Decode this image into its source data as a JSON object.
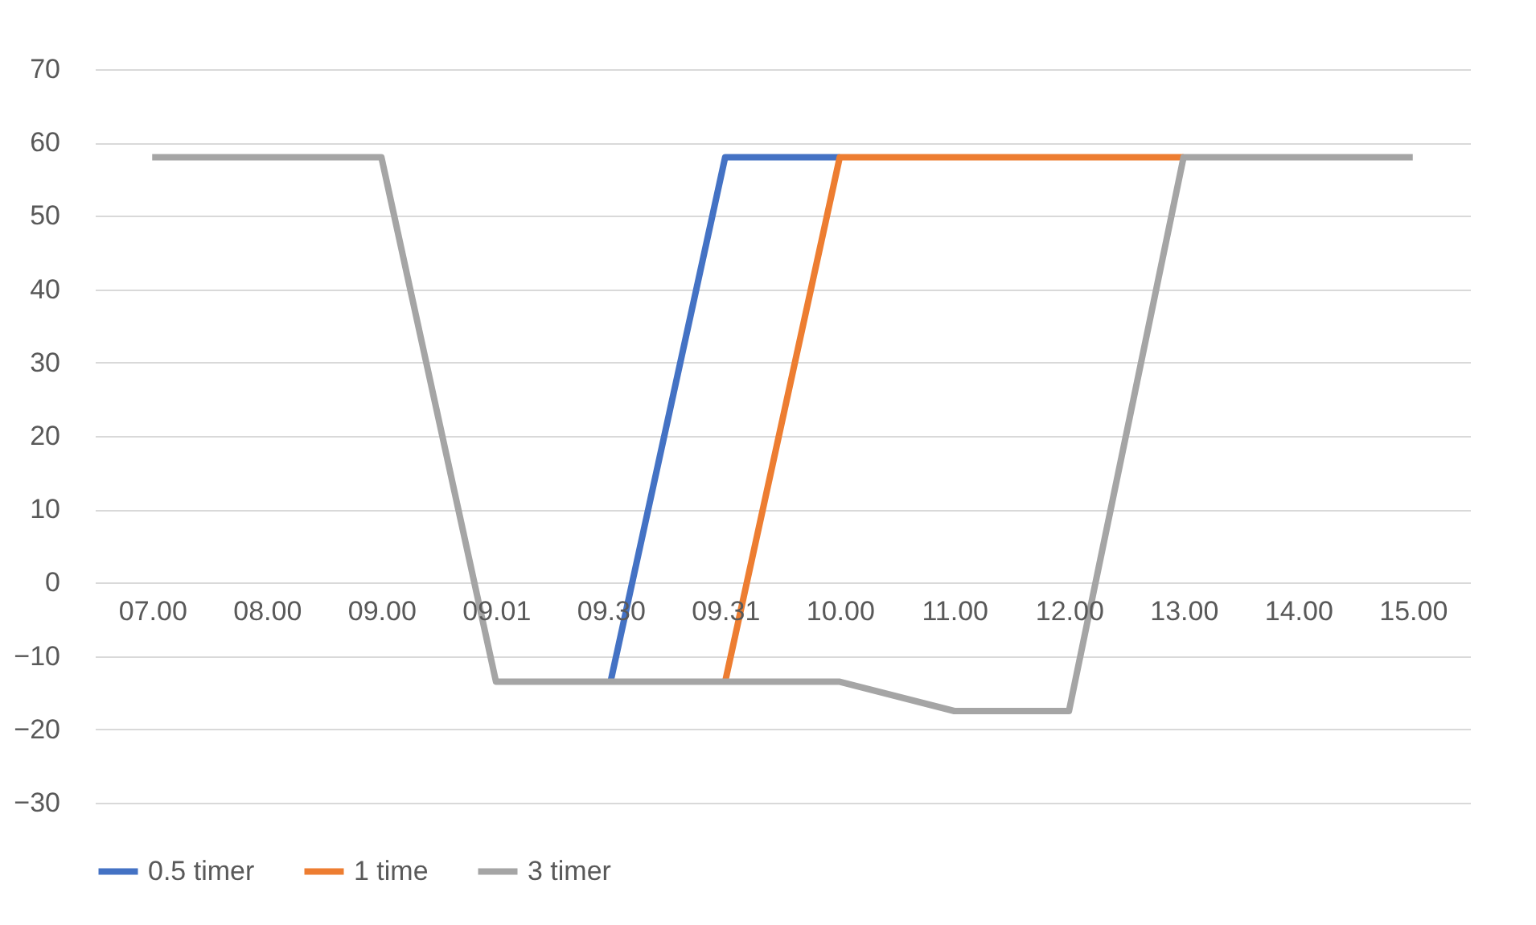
{
  "chart_data": {
    "type": "line",
    "categories": [
      "07.00",
      "08.00",
      "09.00",
      "09.01",
      "09.30",
      "09.31",
      "10.00",
      "11.00",
      "12.00",
      "13.00",
      "14.00",
      "15.00"
    ],
    "series": [
      {
        "name": "0.5 timer",
        "color": "#4472c4",
        "values": [
          null,
          null,
          null,
          null,
          -13.5,
          58,
          58,
          null,
          null,
          null,
          null,
          null
        ]
      },
      {
        "name": "1 time",
        "color": "#ed7d31",
        "values": [
          null,
          null,
          null,
          null,
          null,
          -13.5,
          58,
          58,
          58,
          58,
          null,
          null
        ]
      },
      {
        "name": "3 timer",
        "color": "#a5a5a5",
        "values": [
          58,
          58,
          58,
          -13.5,
          -13.5,
          -13.5,
          -13.5,
          -17.5,
          -17.5,
          58,
          58,
          58
        ]
      }
    ],
    "ylim": [
      -30,
      70
    ],
    "yticks": [
      -30,
      -20,
      -10,
      0,
      10,
      20,
      30,
      40,
      50,
      60,
      70
    ],
    "grid": "y",
    "legend": "bottom",
    "marker": "none",
    "line_style": "solid"
  }
}
